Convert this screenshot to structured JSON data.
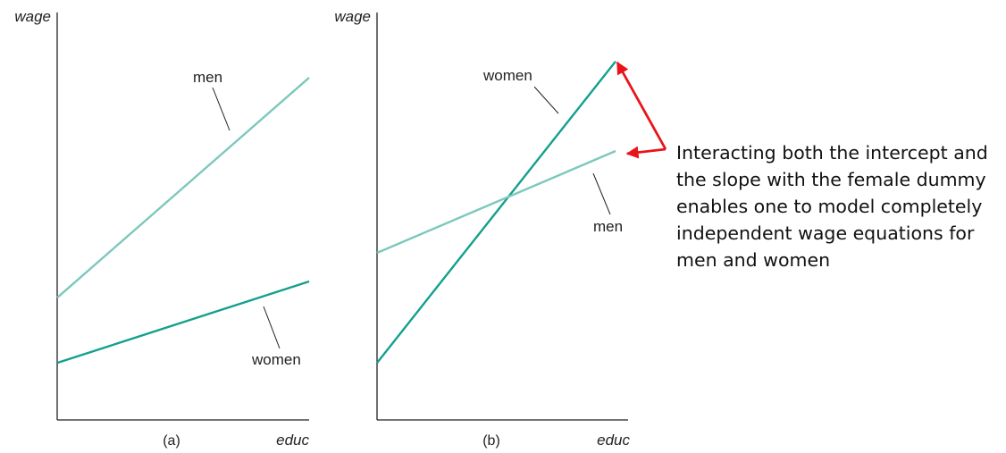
{
  "colors": {
    "axis": "#222222",
    "men": "#7cc8bc",
    "women": "#13a08e",
    "annotation_arrow": "#e8141a"
  },
  "annotation": {
    "text": "Interacting both the intercept and the slope with the female dummy enables one to model completely independent wage equations for men and women"
  },
  "chart_data": [
    {
      "type": "line",
      "panel_label": "(a)",
      "xlabel": "educ",
      "ylabel": "wage",
      "xlim": [
        0,
        10
      ],
      "ylim": [
        0,
        10
      ],
      "series": [
        {
          "name": "men",
          "x": [
            0,
            10
          ],
          "y": [
            3.0,
            8.4
          ]
        },
        {
          "name": "women",
          "x": [
            0,
            10
          ],
          "y": [
            1.4,
            3.4
          ]
        }
      ]
    },
    {
      "type": "line",
      "panel_label": "(b)",
      "xlabel": "educ",
      "ylabel": "wage",
      "xlim": [
        0,
        10
      ],
      "ylim": [
        0,
        10
      ],
      "series": [
        {
          "name": "women",
          "x": [
            0,
            10
          ],
          "y": [
            1.4,
            8.8
          ]
        },
        {
          "name": "men",
          "x": [
            0,
            10
          ],
          "y": [
            4.1,
            6.6
          ]
        }
      ]
    }
  ]
}
